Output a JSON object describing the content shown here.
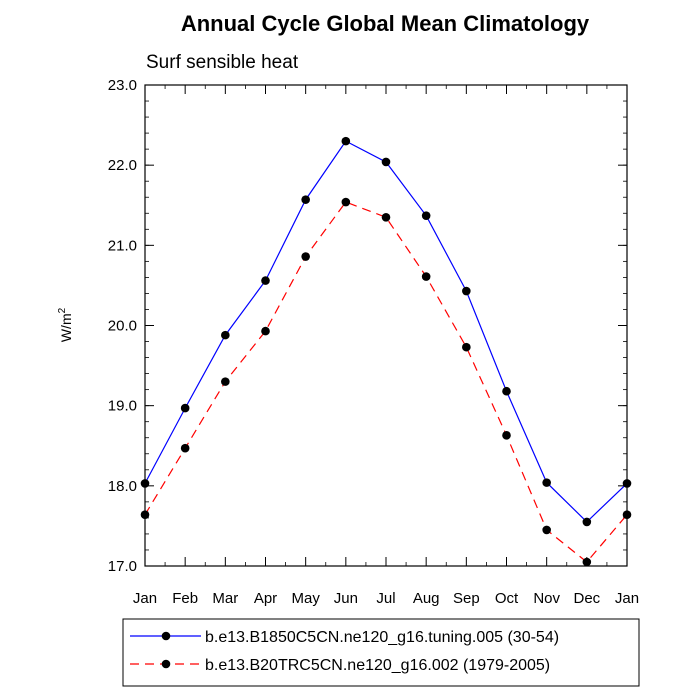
{
  "chart_data": {
    "type": "line",
    "title": "Annual Cycle Global Mean Climatology",
    "subtitle": "Surf sensible heat",
    "xlabel": "",
    "ylabel": "W/m",
    "ylabel_superscript": "2",
    "categories": [
      "Jan",
      "Feb",
      "Mar",
      "Apr",
      "May",
      "Jun",
      "Jul",
      "Aug",
      "Sep",
      "Oct",
      "Nov",
      "Dec",
      "Jan"
    ],
    "ylim": [
      17.0,
      23.0
    ],
    "yticks": [
      "17.0",
      "18.0",
      "19.0",
      "20.0",
      "21.0",
      "22.0",
      "23.0"
    ],
    "grid": false,
    "legend_position": "bottom",
    "series": [
      {
        "name": "b.e13.B1850C5CN.ne120_g16.tuning.005 (30-54)",
        "color": "#0000ff",
        "line_style": "solid",
        "marker": "filled-circle",
        "values": [
          18.03,
          18.97,
          19.88,
          20.56,
          21.57,
          22.3,
          22.04,
          21.37,
          20.43,
          19.18,
          18.04,
          17.55,
          18.03
        ]
      },
      {
        "name": "b.e13.B20TRC5CN.ne120_g16.002 (1979-2005)",
        "color": "#ff0000",
        "line_style": "dashed",
        "marker": "filled-circle",
        "values": [
          17.64,
          18.47,
          19.3,
          19.93,
          20.86,
          21.54,
          21.35,
          20.61,
          19.73,
          18.63,
          17.45,
          17.05,
          17.64
        ]
      }
    ]
  }
}
